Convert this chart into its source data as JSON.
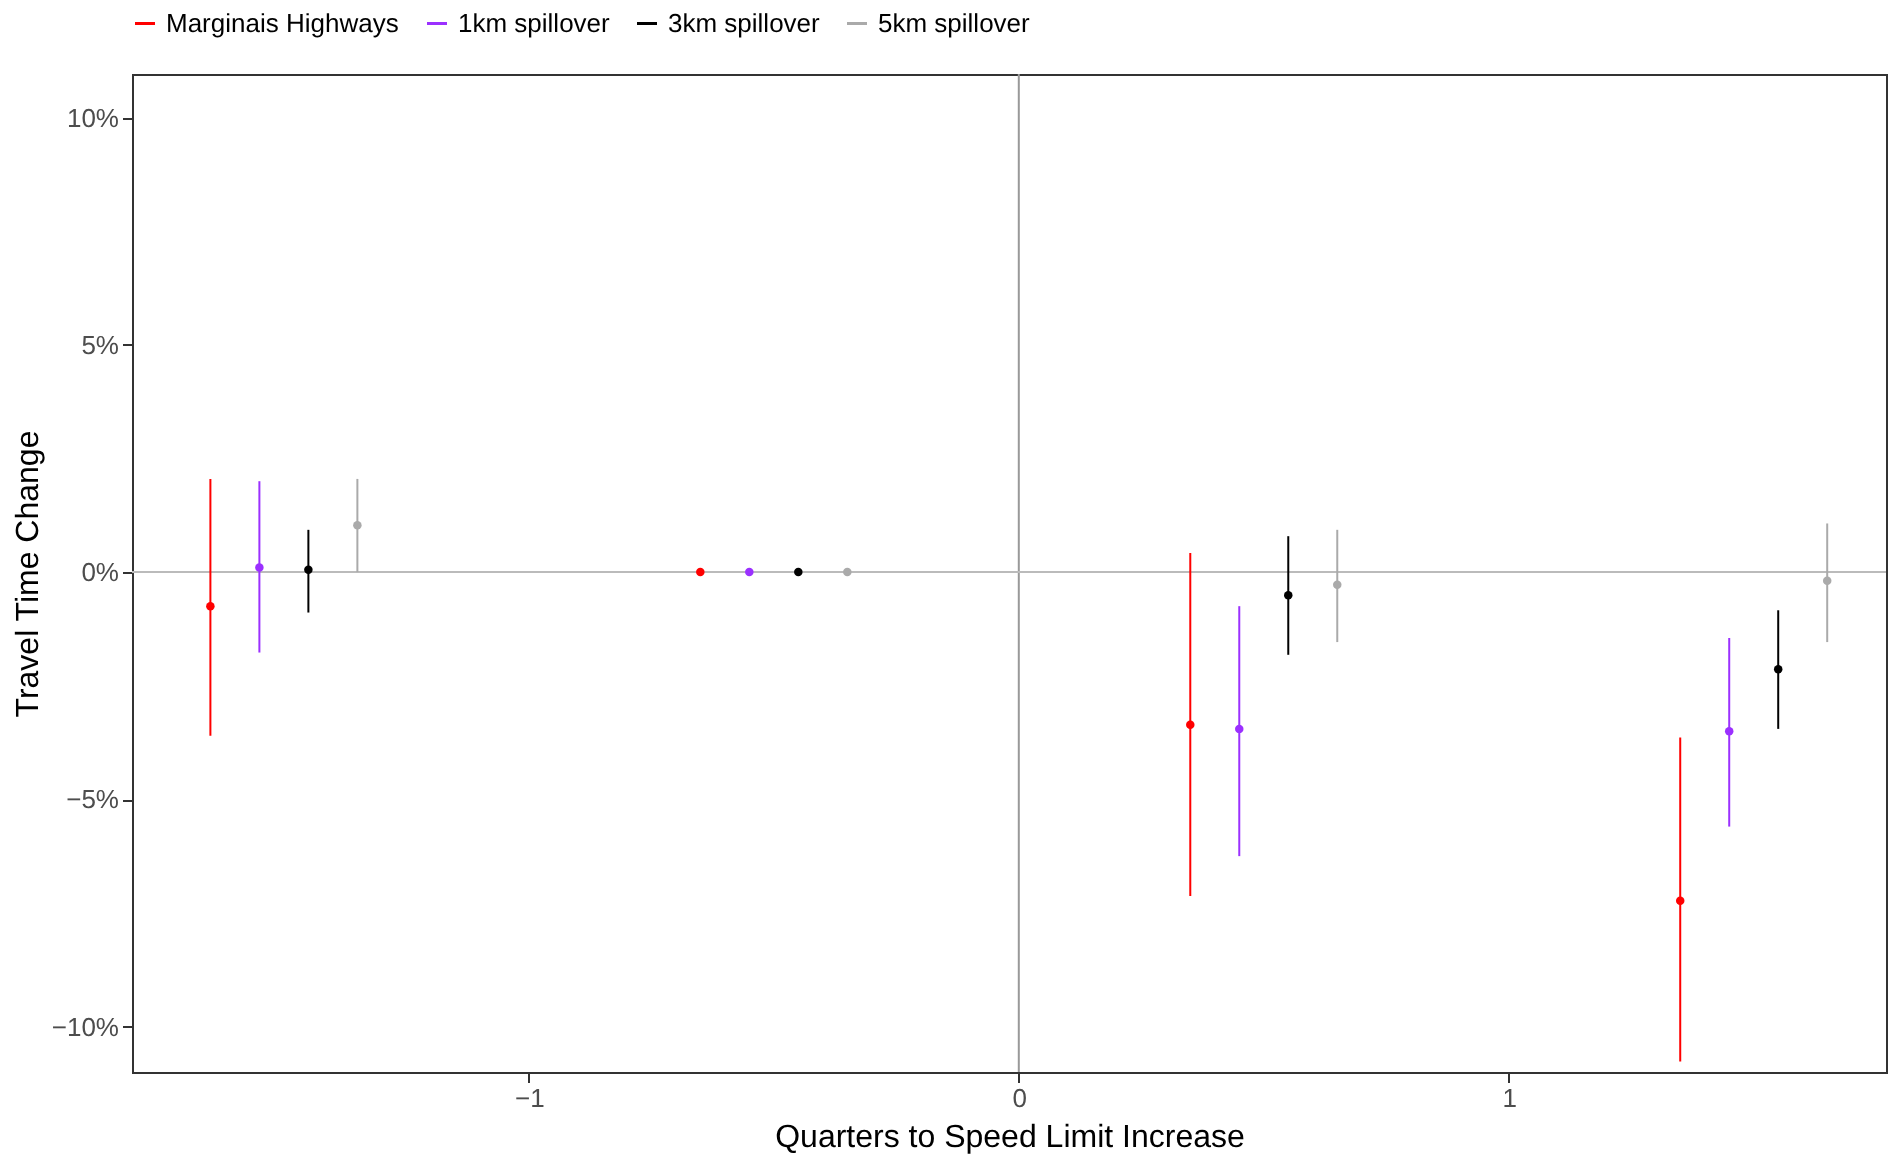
{
  "chart_data": {
    "type": "scatter",
    "xlabel": "Quarters to Speed Limit Increase",
    "ylabel": "Travel Time Change",
    "xlim": [
      -1.81,
      1.77
    ],
    "ylim": [
      -11.0,
      10.96
    ],
    "xticks": [
      {
        "value": -1,
        "label": "−1"
      },
      0,
      1
    ],
    "yticks": [
      {
        "value": -10,
        "label": "−10%"
      },
      {
        "value": -5,
        "label": "−5%"
      },
      {
        "value": 0,
        "label": "0%"
      },
      {
        "value": 5,
        "label": "5%"
      },
      {
        "value": 10,
        "label": "10%"
      }
    ],
    "grid": false,
    "legend": "top",
    "marker": "circle",
    "ref_lines": [
      {
        "axis": "x",
        "value": 0,
        "color": "#999999"
      },
      {
        "axis": "y",
        "value": 0,
        "color": "#bbbbbb"
      }
    ],
    "series": [
      {
        "name": "Marginais Highways",
        "color": "#ff0000",
        "x": [
          -1.65,
          -0.65,
          0.35,
          1.35
        ],
        "values": [
          -0.75,
          0,
          -3.36,
          -7.23
        ],
        "errors": [
          [
            -3.6,
            2.05
          ],
          null,
          [
            -7.13,
            0.42
          ],
          [
            -10.77,
            -3.64
          ]
        ]
      },
      {
        "name": "1km spillover",
        "color": "#9b30ff",
        "x": [
          -1.55,
          -0.55,
          0.45,
          1.45
        ],
        "values": [
          0.1,
          0,
          -3.45,
          -3.5
        ],
        "errors": [
          [
            -1.77,
            2.0
          ],
          null,
          [
            -6.25,
            -0.75
          ],
          [
            -5.6,
            -1.45
          ]
        ]
      },
      {
        "name": "3km spillover",
        "color": "#000000",
        "x": [
          -1.45,
          -0.45,
          0.55,
          1.55
        ],
        "values": [
          0.05,
          0,
          -0.51,
          -2.14
        ],
        "errors": [
          [
            -0.89,
            0.93
          ],
          null,
          [
            -1.82,
            0.79
          ],
          [
            -3.45,
            -0.84
          ]
        ]
      },
      {
        "name": "5km spillover",
        "color": "#aaaaaa",
        "x": [
          -1.35,
          -0.35,
          0.65,
          1.65
        ],
        "values": [
          1.03,
          0,
          -0.28,
          -0.19
        ],
        "errors": [
          [
            0.0,
            2.05
          ],
          null,
          [
            -1.54,
            0.93
          ],
          [
            -1.54,
            1.07
          ]
        ]
      }
    ]
  }
}
